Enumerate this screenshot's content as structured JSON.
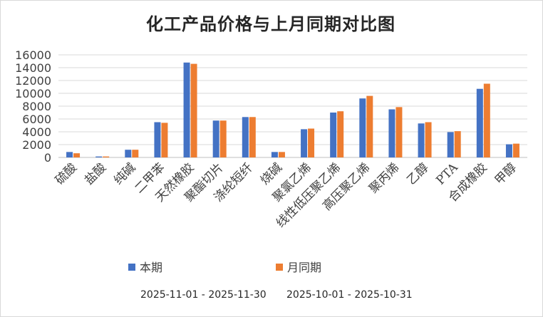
{
  "chart_data": {
    "type": "bar",
    "title": "化工产品价格与上月同期对比图",
    "xlabel": "",
    "ylabel": "",
    "ylim": [
      0,
      16000
    ],
    "yticks": [
      0,
      2000,
      4000,
      6000,
      8000,
      10000,
      12000,
      14000,
      16000
    ],
    "grid": true,
    "legend_position": "bottom",
    "categories": [
      "硫酸",
      "盐酸",
      "纯碱",
      "二甲苯",
      "天然橡胶",
      "聚酯切片",
      "涤纶短纤",
      "烧碱",
      "聚氯乙烯",
      "线性低压聚乙烯",
      "高压聚乙烯",
      "聚丙烯",
      "乙醇",
      "PTA",
      "合成橡胶",
      "甲醇"
    ],
    "series": [
      {
        "name": "本期",
        "color": "#4472C4",
        "values": [
          850,
          150,
          1200,
          5500,
          14800,
          5750,
          6300,
          850,
          4400,
          7000,
          9200,
          7500,
          5300,
          3950,
          10700,
          2050
        ]
      },
      {
        "name": "月同期",
        "color": "#ED7D31",
        "values": [
          650,
          150,
          1200,
          5400,
          14600,
          5750,
          6300,
          850,
          4500,
          7200,
          9600,
          7850,
          5500,
          4100,
          11500,
          2150
        ]
      }
    ],
    "periods": [
      "2025-11-01 - 2025-11-30",
      "2025-10-01 - 2025-10-31"
    ]
  }
}
